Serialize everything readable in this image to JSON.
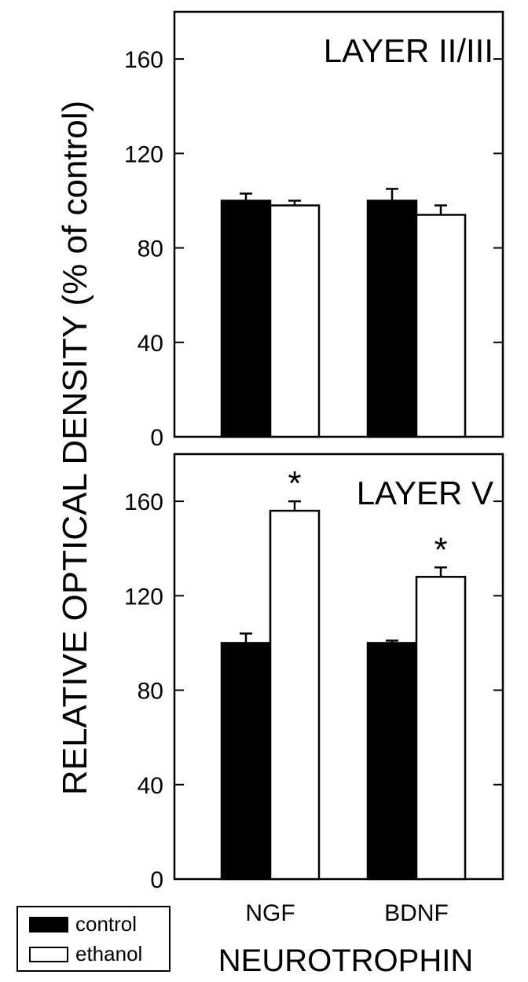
{
  "ylabel": "RELATIVE OPTICAL DENSITY (% of control)",
  "xlabel": "NEUROTROPHIN",
  "categories": [
    "NGF",
    "BDNF"
  ],
  "legend": {
    "position": "bottom-left",
    "items": [
      {
        "label": "control",
        "color": "#000000"
      },
      {
        "label": "ethanol",
        "color": "#ffffff"
      }
    ]
  },
  "chart_data": [
    {
      "type": "bar",
      "title": "LAYER II/III",
      "categories": [
        "NGF",
        "BDNF"
      ],
      "ylim": [
        0,
        180
      ],
      "yticks": [
        0,
        40,
        80,
        120,
        160
      ],
      "series": [
        {
          "name": "control",
          "values": [
            100,
            100
          ],
          "errors": [
            3,
            5
          ]
        },
        {
          "name": "ethanol",
          "values": [
            98,
            94
          ],
          "errors": [
            2,
            4
          ]
        }
      ],
      "annotations": [
        "",
        "",
        "",
        ""
      ]
    },
    {
      "type": "bar",
      "title": "LAYER V",
      "categories": [
        "NGF",
        "BDNF"
      ],
      "ylim": [
        0,
        180
      ],
      "yticks": [
        0,
        40,
        80,
        120,
        160
      ],
      "series": [
        {
          "name": "control",
          "values": [
            100,
            100
          ],
          "errors": [
            4,
            1
          ]
        },
        {
          "name": "ethanol",
          "values": [
            156,
            128
          ],
          "errors": [
            4,
            4
          ]
        }
      ],
      "annotations": [
        "",
        "*",
        "",
        "*"
      ]
    }
  ]
}
